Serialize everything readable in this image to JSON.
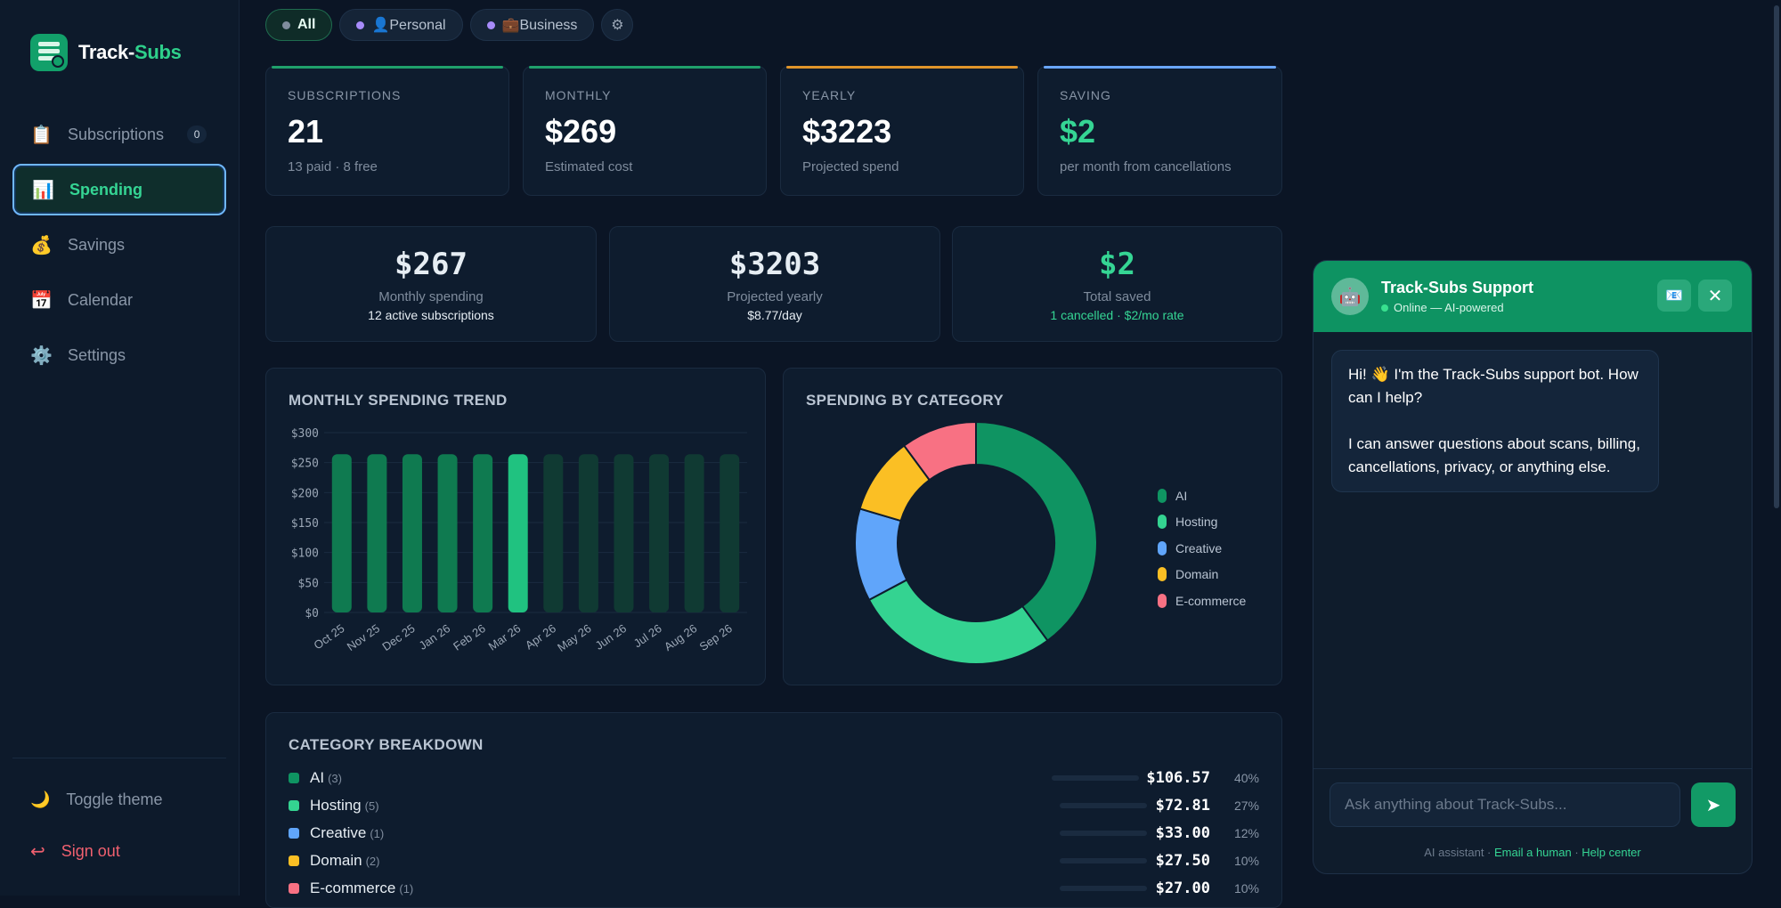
{
  "app": {
    "name_main": "Track-",
    "name_accent": "Subs"
  },
  "sidebar": {
    "items": [
      {
        "label": "Subscriptions",
        "icon": "clipboard-icon",
        "badge": "0"
      },
      {
        "label": "Spending",
        "icon": "bar-chart-icon"
      },
      {
        "label": "Savings",
        "icon": "money-bag-icon"
      },
      {
        "label": "Calendar",
        "icon": "calendar-icon"
      },
      {
        "label": "Settings",
        "icon": "gear-icon"
      }
    ],
    "toggle_theme": "Toggle theme",
    "sign_out": "Sign out"
  },
  "filters": {
    "all": "All",
    "personal": "👤Personal",
    "business": "💼Business"
  },
  "stats": [
    {
      "label": "SUBSCRIPTIONS",
      "value": "21",
      "sub": "13 paid · 8 free",
      "accent": "#1fa06b"
    },
    {
      "label": "MONTHLY",
      "value": "$269",
      "sub": "Estimated cost",
      "accent": "#1fa06b"
    },
    {
      "label": "YEARLY",
      "value": "$3223",
      "sub": "Projected spend",
      "accent": "#e0942a"
    },
    {
      "label": "SAVING",
      "value": "$2",
      "sub": "per month from cancellations",
      "accent": "#6aa6ff"
    }
  ],
  "summary": [
    {
      "value": "$267",
      "line1": "Monthly spending",
      "line2": "12 active subscriptions"
    },
    {
      "value": "$3203",
      "line1": "Projected yearly",
      "line2": "$8.77/day"
    },
    {
      "value": "$2",
      "line1": "Total saved",
      "line2": "1 cancelled · $2/mo rate"
    }
  ],
  "chart_data": [
    {
      "type": "bar",
      "title": "MONTHLY SPENDING TREND",
      "categories": [
        "Oct 25",
        "Nov 25",
        "Dec 25",
        "Jan 26",
        "Feb 26",
        "Mar 26",
        "Apr 26",
        "May 26",
        "Jun 26",
        "Jul 26",
        "Aug 26",
        "Sep 26"
      ],
      "values": [
        264,
        264,
        264,
        264,
        264,
        264,
        264,
        264,
        264,
        264,
        264,
        264
      ],
      "highlight_index": 5,
      "yticks": [
        "$300",
        "$250",
        "$200",
        "$150",
        "$100",
        "$50",
        "$0"
      ],
      "ylim": [
        0,
        300
      ],
      "xlabel": "",
      "ylabel": ""
    },
    {
      "type": "pie",
      "title": "SPENDING BY CATEGORY",
      "labels": [
        "AI",
        "Hosting",
        "Creative",
        "Domain",
        "E-commerce"
      ],
      "values": [
        106.57,
        72.81,
        33.0,
        27.5,
        27.0
      ],
      "colors": [
        "#0f9462",
        "#34d391",
        "#60a5fa",
        "#fbbf24",
        "#f87183"
      ]
    }
  ],
  "breakdown": {
    "title": "CATEGORY BREAKDOWN",
    "rows": [
      {
        "name": "AI",
        "count": "(3)",
        "amount": "$106.57",
        "pct": "40%",
        "fraction": 1.0,
        "color": "#0f9462"
      },
      {
        "name": "Hosting",
        "count": "(5)",
        "amount": "$72.81",
        "pct": "27%",
        "fraction": 0.68,
        "color": "#34d391"
      },
      {
        "name": "Creative",
        "count": "(1)",
        "amount": "$33.00",
        "pct": "12%",
        "fraction": 0.31,
        "color": "#60a5fa"
      },
      {
        "name": "Domain",
        "count": "(2)",
        "amount": "$27.50",
        "pct": "10%",
        "fraction": 0.26,
        "color": "#fbbf24"
      },
      {
        "name": "E-commerce",
        "count": "(1)",
        "amount": "$27.00",
        "pct": "10%",
        "fraction": 0.25,
        "color": "#f87183"
      }
    ]
  },
  "chat": {
    "title": "Track-Subs Support",
    "status": "Online — AI-powered",
    "message_p1": "Hi! 👋 I'm the Track-Subs support bot. How can I help?",
    "message_p2": "I can answer questions about scans, billing, cancellations, privacy, or anything else.",
    "input_placeholder": "Ask anything about Track-Subs...",
    "footer_prefix": "AI assistant · ",
    "footer_link1": "Email a human",
    "footer_sep": " · ",
    "footer_link2": "Help center"
  }
}
